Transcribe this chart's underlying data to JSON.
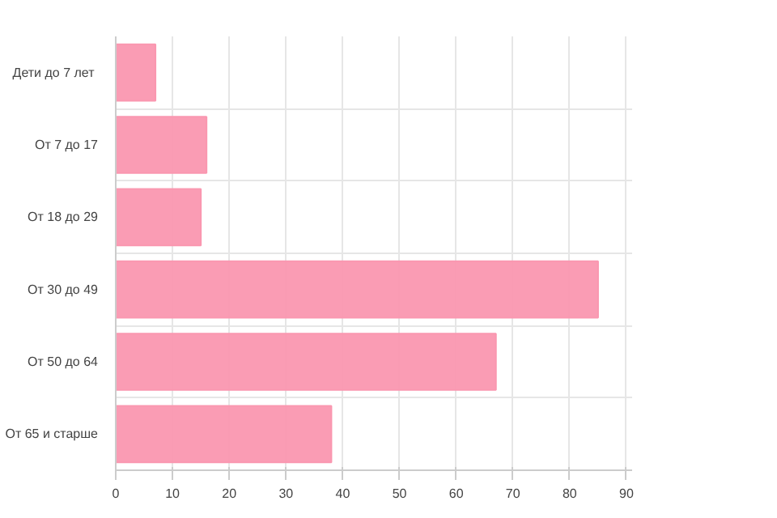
{
  "chart_data": {
    "type": "bar",
    "orientation": "horizontal",
    "categories": [
      "Дети  до 7 лет",
      "От 7 до 17",
      "От 18 до 29",
      "От 30 до 49",
      "От 50 до 64",
      "От 65 и старше"
    ],
    "values": [
      7,
      16,
      15,
      85,
      67,
      38
    ],
    "color": "#fa97b0",
    "xlim": [
      0,
      91
    ],
    "xticks": [
      0,
      10,
      20,
      30,
      40,
      50,
      60,
      70,
      80,
      90
    ],
    "grid": true
  }
}
